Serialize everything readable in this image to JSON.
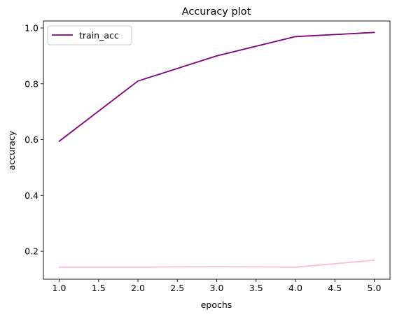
{
  "chart_data": {
    "type": "line",
    "title": "Accuracy plot",
    "xlabel": "epochs",
    "ylabel": "accuracy",
    "xlim": [
      0.8,
      5.2
    ],
    "ylim": [
      0.1,
      1.025
    ],
    "x_ticks": [
      "1.0",
      "1.5",
      "2.0",
      "2.5",
      "3.0",
      "3.5",
      "4.0",
      "4.5",
      "5.0"
    ],
    "y_ticks": [
      "0.2",
      "0.4",
      "0.6",
      "0.8",
      "1.0"
    ],
    "x_tick_values": [
      1.0,
      1.5,
      2.0,
      2.5,
      3.0,
      3.5,
      4.0,
      4.5,
      5.0
    ],
    "y_tick_values": [
      0.2,
      0.4,
      0.6,
      0.8,
      1.0
    ],
    "grid": false,
    "legend_position": "upper-left",
    "series": [
      {
        "name": "train_acc",
        "color": "#800080",
        "x": [
          1,
          2,
          3,
          4,
          5
        ],
        "values": [
          0.594,
          0.81,
          0.9,
          0.969,
          0.984
        ]
      },
      {
        "color": "#ffc0cb",
        "x": [
          1,
          2,
          3,
          4,
          5
        ],
        "values": [
          0.143,
          0.143,
          0.145,
          0.143,
          0.168
        ]
      }
    ]
  }
}
